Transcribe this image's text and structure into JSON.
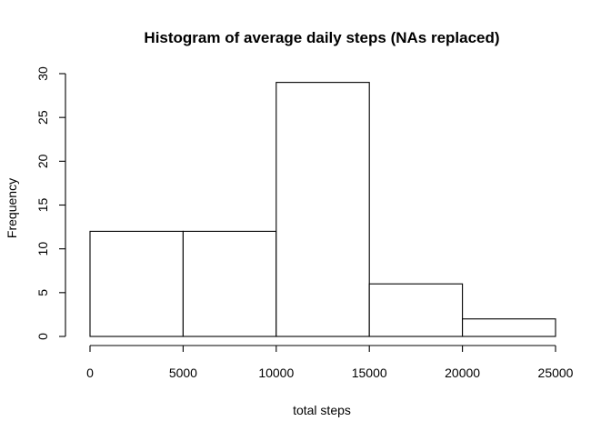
{
  "chart_data": {
    "type": "bar",
    "title": "Histogram of average daily steps (NAs replaced)",
    "xlabel": "total steps",
    "ylabel": "Frequency",
    "bins": [
      {
        "start": 0,
        "end": 5000,
        "count": 12
      },
      {
        "start": 5000,
        "end": 10000,
        "count": 12
      },
      {
        "start": 10000,
        "end": 15000,
        "count": 29
      },
      {
        "start": 15000,
        "end": 20000,
        "count": 6
      },
      {
        "start": 20000,
        "end": 25000,
        "count": 2
      }
    ],
    "xlim": [
      0,
      25000
    ],
    "ylim": [
      0,
      30
    ],
    "x_ticks": [
      0,
      5000,
      10000,
      15000,
      20000,
      25000
    ],
    "y_ticks": [
      0,
      5,
      10,
      15,
      20,
      25,
      30
    ],
    "grid": false,
    "legend": "none",
    "colors": {
      "bar_fill": "#ffffff",
      "bar_stroke": "#000000"
    }
  }
}
